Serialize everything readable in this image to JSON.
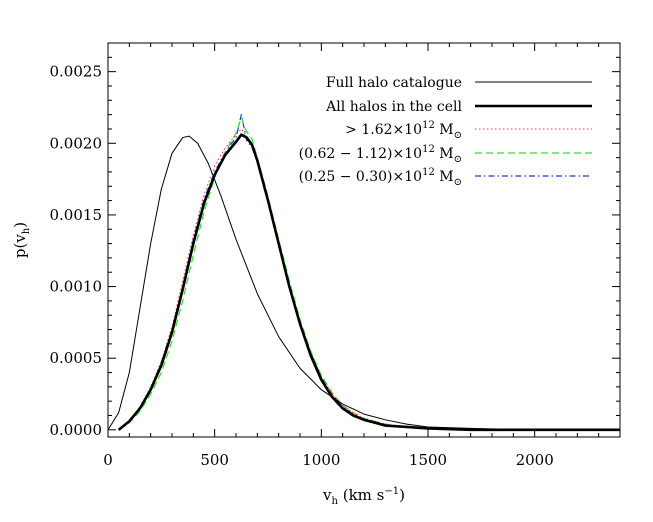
{
  "chart_data": {
    "type": "line",
    "title": "",
    "xlabel": {
      "main": "v",
      "sub": "h",
      "rest": " (km s",
      "sup": "−1",
      "close": ")"
    },
    "ylabel": {
      "main": "p(v",
      "sub": "h",
      "close": ")"
    },
    "xlim": [
      0,
      2400
    ],
    "ylim": [
      -5e-05,
      0.0027
    ],
    "x_ticks": [
      0,
      500,
      1000,
      1500,
      2000
    ],
    "x_tick_labels": [
      "0",
      "500",
      "1000",
      "1500",
      "2000"
    ],
    "y_ticks": [
      0.0,
      0.0005,
      0.001,
      0.0015,
      0.002,
      0.0025
    ],
    "y_tick_labels": [
      "0.0000",
      "0.0005",
      "0.0010",
      "0.0015",
      "0.0020",
      "0.0025"
    ],
    "grid": false,
    "legend_position": "top-right",
    "series": [
      {
        "name": "Full halo catalogue",
        "color": "#000000",
        "style": "thin-solid",
        "x": [
          0,
          50,
          100,
          150,
          200,
          250,
          300,
          350,
          380,
          420,
          470,
          530,
          600,
          700,
          800,
          900,
          1000,
          1100,
          1200,
          1300,
          1400,
          1500,
          1700,
          2000,
          2400
        ],
        "y": [
          0.0,
          0.00012,
          0.0004,
          0.00085,
          0.0013,
          0.00168,
          0.00193,
          0.00204,
          0.00205,
          0.002,
          0.00186,
          0.00163,
          0.00133,
          0.00095,
          0.00065,
          0.00043,
          0.00028,
          0.00018,
          0.00011,
          7e-05,
          4e-05,
          2e-05,
          1e-05,
          0.0,
          0.0
        ]
      },
      {
        "name": "All halos in the cell",
        "color": "#000000",
        "style": "thick-solid",
        "x": [
          50,
          100,
          150,
          200,
          250,
          300,
          350,
          400,
          450,
          500,
          550,
          600,
          625,
          650,
          675,
          700,
          750,
          800,
          850,
          900,
          950,
          1000,
          1050,
          1100,
          1150,
          1200,
          1250,
          1300,
          1400,
          1500,
          1700,
          2000,
          2400
        ],
        "y": [
          0.0,
          6e-05,
          0.00015,
          0.00028,
          0.00045,
          0.00068,
          0.00098,
          0.0013,
          0.00158,
          0.00178,
          0.00192,
          0.00201,
          0.00206,
          0.00204,
          0.00199,
          0.00188,
          0.0016,
          0.0013,
          0.001,
          0.00074,
          0.00052,
          0.00035,
          0.00023,
          0.00015,
          0.0001,
          7e-05,
          5e-05,
          3e-05,
          2e-05,
          1e-05,
          0.0,
          0.0,
          0.0
        ]
      },
      {
        "name": "> 1.62×10¹² M⊙",
        "color": "#e8393f",
        "style": "dotted",
        "x": [
          50,
          100,
          150,
          200,
          250,
          300,
          350,
          400,
          450,
          500,
          550,
          600,
          625,
          650,
          675,
          700,
          750,
          800,
          850,
          900,
          950,
          1000,
          1050,
          1100,
          1150,
          1200,
          1250,
          1300,
          1400,
          1500,
          1700,
          2000,
          2400
        ],
        "y": [
          0.0,
          5e-05,
          0.00016,
          0.0003,
          0.00048,
          0.00072,
          0.00104,
          0.00136,
          0.00164,
          0.00184,
          0.00197,
          0.00206,
          0.0021,
          0.00205,
          0.00198,
          0.00186,
          0.00158,
          0.00129,
          0.001,
          0.00076,
          0.00054,
          0.00037,
          0.00025,
          0.00017,
          0.00012,
          8e-05,
          6e-05,
          4e-05,
          2e-05,
          1e-05,
          0.0,
          0.0,
          0.0
        ]
      },
      {
        "name": "(0.62 − 1.12)×10¹² M⊙",
        "color": "#2ee02e",
        "style": "dashed",
        "x": [
          50,
          100,
          150,
          200,
          250,
          300,
          350,
          400,
          450,
          500,
          550,
          600,
          625,
          650,
          675,
          700,
          750,
          800,
          850,
          900,
          950,
          1000,
          1050,
          1100,
          1150,
          1200,
          1250,
          1300,
          1400,
          1500,
          1700,
          2000,
          2400
        ],
        "y": [
          0.0,
          5e-05,
          0.00013,
          0.00025,
          0.0004,
          0.00062,
          0.0009,
          0.00122,
          0.00152,
          0.00176,
          0.00194,
          0.00207,
          0.00218,
          0.00208,
          0.00203,
          0.0019,
          0.00163,
          0.00133,
          0.00104,
          0.00077,
          0.00055,
          0.00038,
          0.00026,
          0.00017,
          0.00012,
          8e-05,
          6e-05,
          4e-05,
          2e-05,
          1e-05,
          0.0,
          0.0,
          0.0
        ]
      },
      {
        "name": "(0.25 − 0.30)×10¹² M⊙",
        "color": "#1f3cc8",
        "style": "dash-dot",
        "x": [
          50,
          100,
          150,
          200,
          250,
          300,
          350,
          400,
          450,
          500,
          550,
          600,
          625,
          650,
          675,
          700,
          750,
          800,
          850,
          900,
          950,
          1000,
          1050,
          1100,
          1150,
          1200,
          1250,
          1300,
          1400,
          1500,
          1700,
          2000,
          2400
        ],
        "y": [
          0.0,
          6e-05,
          0.00016,
          0.00029,
          0.00047,
          0.0007,
          0.001,
          0.00133,
          0.00161,
          0.0018,
          0.00194,
          0.00204,
          0.0022,
          0.00202,
          0.00197,
          0.00187,
          0.00161,
          0.00131,
          0.00102,
          0.00075,
          0.00054,
          0.00037,
          0.00025,
          0.00016,
          0.00011,
          7e-05,
          5e-05,
          3e-05,
          2e-05,
          1e-05,
          0.0,
          0.0,
          0.0
        ]
      }
    ],
    "legend_entries": [
      {
        "text": "Full halo catalogue"
      },
      {
        "text": "All halos in the cell"
      },
      {
        "prefix": "> 1.62×10",
        "sup": "12",
        "suffix": " M",
        "sun_sub": "⊙"
      },
      {
        "prefix": "(0.62 − 1.12)×10",
        "sup": "12",
        "suffix": " M",
        "sun_sub": "⊙"
      },
      {
        "prefix": "(0.25 − 0.30)×10",
        "sup": "12",
        "suffix": " M",
        "sun_sub": "⊙"
      }
    ]
  }
}
